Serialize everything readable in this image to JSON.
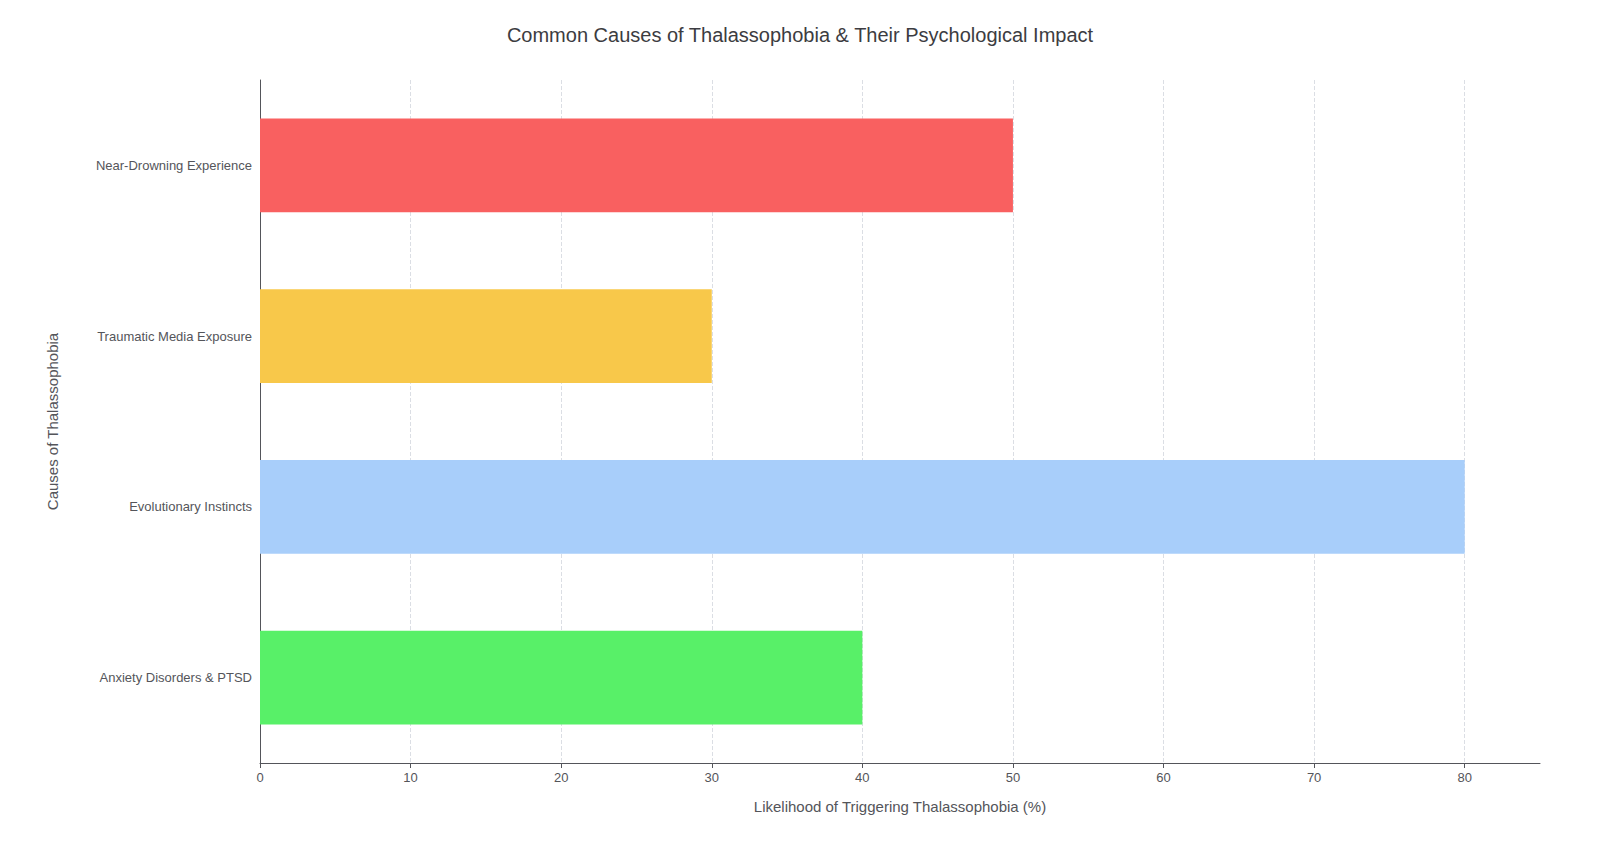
{
  "chart_data": {
    "type": "bar",
    "orientation": "horizontal",
    "title": "Common Causes of Thalassophobia & Their Psychological Impact",
    "xlabel": "Likelihood of Triggering Thalassophobia (%)",
    "ylabel": "Causes of Thalassophobia",
    "categories": [
      "Near-Drowning Experience",
      "Traumatic Media Exposure",
      "Evolutionary Instincts",
      "Anxiety Disorders & PTSD"
    ],
    "values": [
      50,
      30,
      80,
      40
    ],
    "colors": [
      "#F96060",
      "#F8C84A",
      "#A8CEFA",
      "#58F068"
    ],
    "xlim": [
      0,
      85
    ],
    "xticks": [
      0,
      10,
      20,
      30,
      40,
      50,
      60,
      70,
      80
    ],
    "grid": true
  }
}
